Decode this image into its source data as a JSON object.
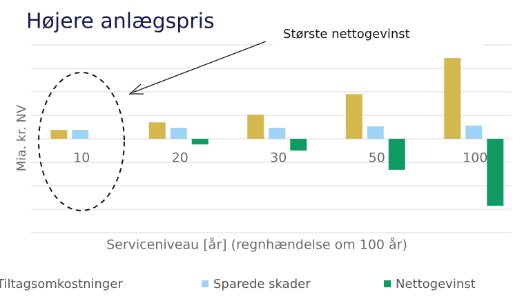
{
  "chart_data": {
    "type": "bar",
    "title": "Højere anlægspris",
    "annotation": "Største nettogevinst",
    "ylabel": "Mia. kr. NV",
    "xlabel": "Serviceniveau [år] (regnhændelse om 100 år)",
    "categories": [
      "10",
      "20",
      "30",
      "50",
      "100"
    ],
    "series": [
      {
        "name": "Tiltagsomkostninger",
        "color": "#d4b84e",
        "values": [
          0.38,
          0.7,
          1.03,
          1.9,
          3.44
        ]
      },
      {
        "name": "Sparede skader",
        "color": "#9dd3f5",
        "values": [
          0.38,
          0.47,
          0.47,
          0.53,
          0.56
        ]
      },
      {
        "name": "Nettogevinst",
        "color": "#0e9a63",
        "values": [
          0,
          -0.24,
          -0.5,
          -1.32,
          -2.85
        ]
      }
    ],
    "ylim": [
      -4,
      4
    ],
    "yticks": [
      -4,
      -3,
      -2,
      -1,
      0,
      1,
      2,
      3,
      4
    ],
    "grid": true
  }
}
